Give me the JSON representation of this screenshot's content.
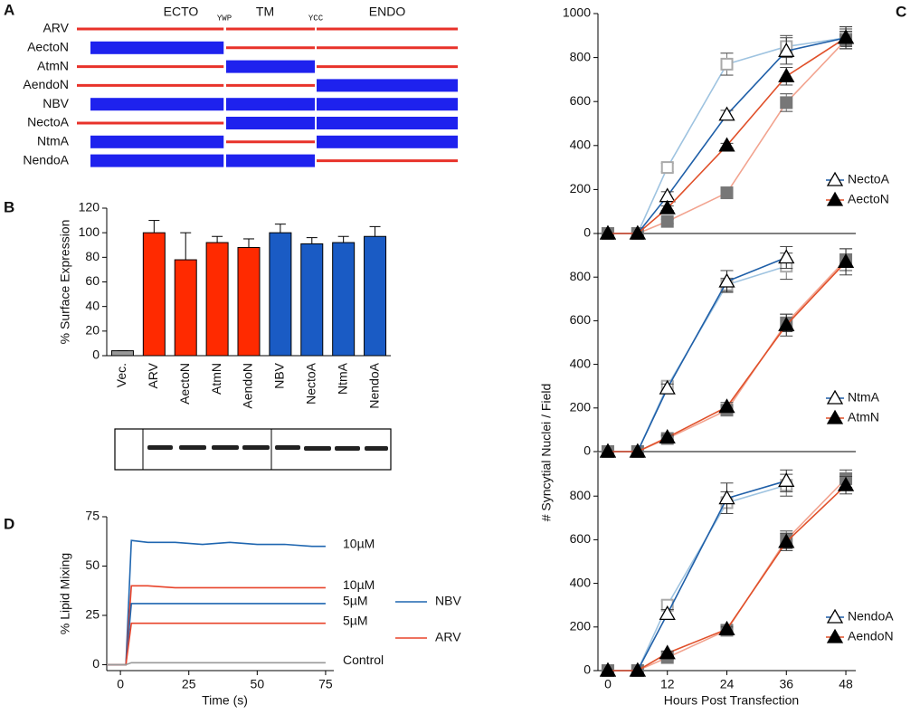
{
  "panel_labels": [
    "A",
    "B",
    "C",
    "D"
  ],
  "diagram": {
    "regions": [
      "ECTO",
      "TM",
      "ENDO"
    ],
    "junctions": [
      "YWP",
      "YCC"
    ],
    "constructs": [
      {
        "name": "ARV",
        "segments": [
          "red",
          "red",
          "red"
        ]
      },
      {
        "name": "AectoN",
        "segments": [
          "blue",
          "red",
          "red"
        ]
      },
      {
        "name": "AtmN",
        "segments": [
          "red",
          "blue",
          "red"
        ]
      },
      {
        "name": "AendoN",
        "segments": [
          "red",
          "red",
          "blue"
        ]
      },
      {
        "name": "NBV",
        "segments": [
          "blue",
          "blue",
          "blue"
        ]
      },
      {
        "name": "NectoA",
        "segments": [
          "red",
          "blue",
          "blue"
        ]
      },
      {
        "name": "NtmA",
        "segments": [
          "blue",
          "red",
          "blue"
        ]
      },
      {
        "name": "NendoA",
        "segments": [
          "blue",
          "blue",
          "red"
        ]
      }
    ]
  },
  "chart_data": [
    {
      "type": "bar",
      "ylabel": "% Surface Expression",
      "categories": [
        "Vec.",
        "ARV",
        "AectoN",
        "AtmN",
        "AendoN",
        "NBV",
        "NectoA",
        "NtmA",
        "NendoA"
      ],
      "values": [
        4,
        100,
        78,
        92,
        88,
        100,
        91,
        92,
        97
      ],
      "errors": [
        0,
        10,
        22,
        5,
        7,
        7,
        5,
        5,
        8
      ],
      "colors": [
        "#999999",
        "#ff2a00",
        "#ff2a00",
        "#ff2a00",
        "#ff2a00",
        "#1a5bc4",
        "#1a5bc4",
        "#1a5bc4",
        "#1a5bc4"
      ],
      "ylim": [
        0,
        120
      ],
      "yticks": [
        0,
        20,
        40,
        60,
        80,
        100,
        120
      ]
    },
    {
      "type": "line",
      "x": [
        0,
        6,
        12,
        24,
        36,
        48
      ],
      "xlim": [
        -2,
        50
      ],
      "ylim": [
        0,
        1000
      ],
      "yticks": [
        0,
        200,
        400,
        600,
        800,
        1000
      ],
      "legend": "lower right",
      "series": [
        {
          "color": "#9ec3e0",
          "marker": "square-open",
          "values": [
            0,
            0,
            300,
            770,
            850,
            890
          ],
          "errors": [
            0,
            0,
            20,
            50,
            50,
            40
          ]
        },
        {
          "color": "#f2a38f",
          "marker": "square",
          "values": [
            0,
            0,
            55,
            185,
            595,
            880
          ],
          "errors": [
            0,
            0,
            10,
            10,
            40,
            40
          ]
        },
        {
          "name": "NectoA",
          "color": "#1f5fa8",
          "marker": "triangle-open",
          "values": [
            0,
            0,
            170,
            540,
            830,
            890
          ],
          "errors": [
            0,
            0,
            20,
            20,
            60,
            50
          ]
        },
        {
          "name": "AectoN",
          "color": "#e0502a",
          "marker": "triangle",
          "values": [
            0,
            0,
            115,
            400,
            715,
            890
          ],
          "errors": [
            0,
            0,
            10,
            10,
            40,
            50
          ]
        }
      ]
    },
    {
      "type": "line",
      "ylabel": "# Syncytial Nuclei / Field",
      "x": [
        0,
        6,
        12,
        24,
        36,
        48
      ],
      "xlim": [
        -2,
        50
      ],
      "ylim": [
        0,
        1000
      ],
      "yticks": [
        0,
        200,
        400,
        600,
        800
      ],
      "legend": "lower right",
      "series": [
        {
          "color": "#9ec3e0",
          "marker": "square-open",
          "values": [
            0,
            0,
            300,
            765,
            850,
            null
          ],
          "errors": [
            0,
            0,
            20,
            30,
            60,
            null
          ]
        },
        {
          "color": "#f2a38f",
          "marker": "square",
          "values": [
            0,
            0,
            60,
            190,
            590,
            880
          ],
          "errors": [
            0,
            0,
            10,
            10,
            40,
            50
          ]
        },
        {
          "name": "NtmA",
          "color": "#1f5fa8",
          "marker": "triangle-open",
          "values": [
            0,
            0,
            290,
            780,
            890,
            null
          ],
          "errors": [
            0,
            0,
            20,
            50,
            50,
            null
          ]
        },
        {
          "name": "AtmN",
          "color": "#e0502a",
          "marker": "triangle",
          "values": [
            0,
            0,
            65,
            205,
            580,
            870
          ],
          "errors": [
            0,
            0,
            10,
            20,
            50,
            60
          ]
        }
      ]
    },
    {
      "type": "line",
      "xlabel": "Hours Post Transfection",
      "x": [
        0,
        6,
        12,
        24,
        36,
        48
      ],
      "xlim": [
        -2,
        50
      ],
      "xticks": [
        0,
        12,
        24,
        36,
        48
      ],
      "ylim": [
        0,
        1000
      ],
      "yticks": [
        0,
        200,
        400,
        600,
        800
      ],
      "legend": "lower right",
      "series": [
        {
          "color": "#9ec3e0",
          "marker": "square-open",
          "values": [
            0,
            0,
            300,
            770,
            850,
            null
          ],
          "errors": [
            0,
            0,
            20,
            50,
            50,
            null
          ]
        },
        {
          "color": "#f2a38f",
          "marker": "square",
          "values": [
            0,
            0,
            60,
            185,
            600,
            880
          ],
          "errors": [
            0,
            0,
            10,
            10,
            40,
            40
          ]
        },
        {
          "name": "NendoA",
          "color": "#1f5fa8",
          "marker": "triangle-open",
          "values": [
            0,
            0,
            260,
            790,
            870,
            null
          ],
          "errors": [
            0,
            0,
            20,
            70,
            50,
            null
          ]
        },
        {
          "name": "AendoN",
          "color": "#e0502a",
          "marker": "triangle",
          "values": [
            0,
            0,
            80,
            190,
            590,
            850
          ],
          "errors": [
            0,
            0,
            10,
            10,
            40,
            40
          ]
        }
      ]
    },
    {
      "type": "line",
      "ylabel": "% Lipid Mixing",
      "xlabel": "Time (s)",
      "x": [
        -5,
        0,
        2,
        4,
        10,
        20,
        30,
        40,
        50,
        60,
        70,
        75
      ],
      "xlim": [
        -5,
        78
      ],
      "xticks": [
        0,
        25,
        50,
        75
      ],
      "ylim": [
        -3,
        75
      ],
      "yticks": [
        0,
        25,
        50,
        75
      ],
      "legend_entries": [
        {
          "name": "NBV",
          "color": "#1f66b0"
        },
        {
          "name": "ARV",
          "color": "#e8432a"
        }
      ],
      "series": [
        {
          "label": "10µM",
          "color": "#1f66b0",
          "values": [
            0,
            0,
            0,
            63,
            62,
            62,
            61,
            62,
            61,
            61,
            60,
            60
          ]
        },
        {
          "label": "10µM",
          "color": "#e8432a",
          "values": [
            0,
            0,
            0,
            40,
            40,
            39,
            39,
            39,
            39,
            39,
            39,
            39
          ]
        },
        {
          "label": "5µM",
          "color": "#1f66b0",
          "values": [
            0,
            0,
            0,
            31,
            31,
            31,
            31,
            31,
            31,
            31,
            31,
            31
          ]
        },
        {
          "label": "5µM",
          "color": "#e8432a",
          "values": [
            0,
            0,
            0,
            21,
            21,
            21,
            21,
            21,
            21,
            21,
            21,
            21
          ]
        },
        {
          "label": "Control",
          "color": "#999999",
          "values": [
            0,
            0,
            0,
            1,
            1,
            1,
            1,
            1,
            1,
            1,
            1,
            1
          ]
        }
      ]
    }
  ]
}
